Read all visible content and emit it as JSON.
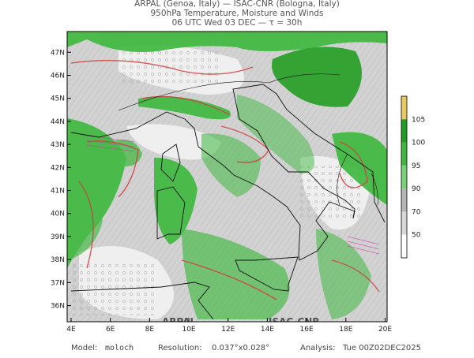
{
  "header": {
    "lines": [
      "ARPAL (Genoa, Italy)  —  ISAC-CNR (Bologna, Italy)",
      "950hPa Temperature, Moisture and Winds",
      "06 UTC Wed 03 DEC  —  τ = 30h"
    ]
  },
  "map": {
    "lonlim": [
      3.8,
      20.1
    ],
    "latlim": [
      35.3,
      47.9
    ],
    "lonticks": [
      {
        "value": 4,
        "label": "4E"
      },
      {
        "value": 6,
        "label": "6E"
      },
      {
        "value": 8,
        "label": "8E"
      },
      {
        "value": 10,
        "label": "10E"
      },
      {
        "value": 12,
        "label": "12E"
      },
      {
        "value": 14,
        "label": "14E"
      },
      {
        "value": 16,
        "label": "16E"
      },
      {
        "value": 18,
        "label": "18E"
      },
      {
        "value": 20,
        "label": "20E"
      }
    ],
    "latticks": [
      {
        "value": 36,
        "label": "36N"
      },
      {
        "value": 37,
        "label": "37N"
      },
      {
        "value": 38,
        "label": "38N"
      },
      {
        "value": 39,
        "label": "39N"
      },
      {
        "value": 40,
        "label": "40N"
      },
      {
        "value": 41,
        "label": "41N"
      },
      {
        "value": 42,
        "label": "42N"
      },
      {
        "value": 43,
        "label": "43N"
      },
      {
        "value": 44,
        "label": "44N"
      },
      {
        "value": 45,
        "label": "45N"
      },
      {
        "value": 46,
        "label": "46N"
      },
      {
        "value": 47,
        "label": "47N"
      }
    ],
    "watermarks": [
      "ARPAL",
      "ISAC-CNR"
    ]
  },
  "colorbar": {
    "labels": [
      "105",
      "100",
      "95",
      "90",
      "70",
      "50"
    ],
    "colors": [
      "#e8c860",
      "#1e9e1e",
      "#3cb83c",
      "#78d078",
      "#b4b4b4",
      "#d8d8d8",
      "#ffffff"
    ]
  },
  "footer": {
    "model_label": "Model:",
    "model": "moloch",
    "resolution_label": "Resolution:",
    "resolution": "0.037°x0.028°",
    "analysis_label": "Analysis:",
    "analysis": "Tue 00Z02DEC2025"
  }
}
